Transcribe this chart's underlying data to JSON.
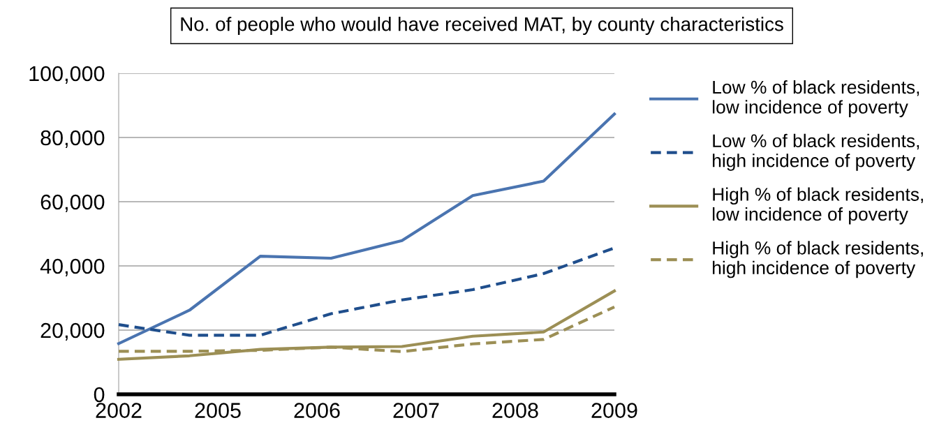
{
  "chart_data": {
    "type": "line",
    "title": "No. of people who would have received MAT, by county characteristics",
    "categories": [
      null,
      null,
      null,
      null,
      null,
      null,
      null,
      null
    ],
    "annotations": [
      "2002",
      "2005",
      "2006",
      "2007",
      "2008",
      "2009"
    ],
    "ylim": [
      0,
      100000
    ],
    "yticks": [
      {
        "value": 0,
        "label": "0"
      },
      {
        "value": 20000,
        "label": "20,000"
      },
      {
        "value": 40000,
        "label": "40,000"
      },
      {
        "value": 60000,
        "label": "60,000"
      },
      {
        "value": 80000,
        "label": "80,000"
      },
      {
        "value": 100000,
        "label": "100,000"
      }
    ],
    "grid": "y",
    "legend": "right",
    "marker": "none",
    "series": [
      {
        "name": "Low % of black residents,\nlow incidence of poverty",
        "color": "#4a74b0",
        "line_style": "solid",
        "values": [
          15800,
          26200,
          43000,
          42400,
          47900,
          61900,
          66400,
          87300
        ]
      },
      {
        "name": "Low % of black residents,\nhigh incidence of poverty",
        "color": "#1f4e8c",
        "line_style": "dashed",
        "values": [
          21700,
          18400,
          18400,
          25100,
          29400,
          32600,
          37600,
          45600
        ]
      },
      {
        "name": "High % of black residents,\nlow incidence of poverty",
        "color": "#9c8f55",
        "line_style": "solid",
        "values": [
          10900,
          12000,
          14000,
          14700,
          14900,
          18100,
          19400,
          32200
        ]
      },
      {
        "name": "High % of black residents,\nhigh incidence of poverty",
        "color": "#9c8f55",
        "line_style": "dashed",
        "values": [
          13400,
          13400,
          13700,
          14700,
          13300,
          15700,
          17100,
          27200
        ]
      }
    ]
  }
}
